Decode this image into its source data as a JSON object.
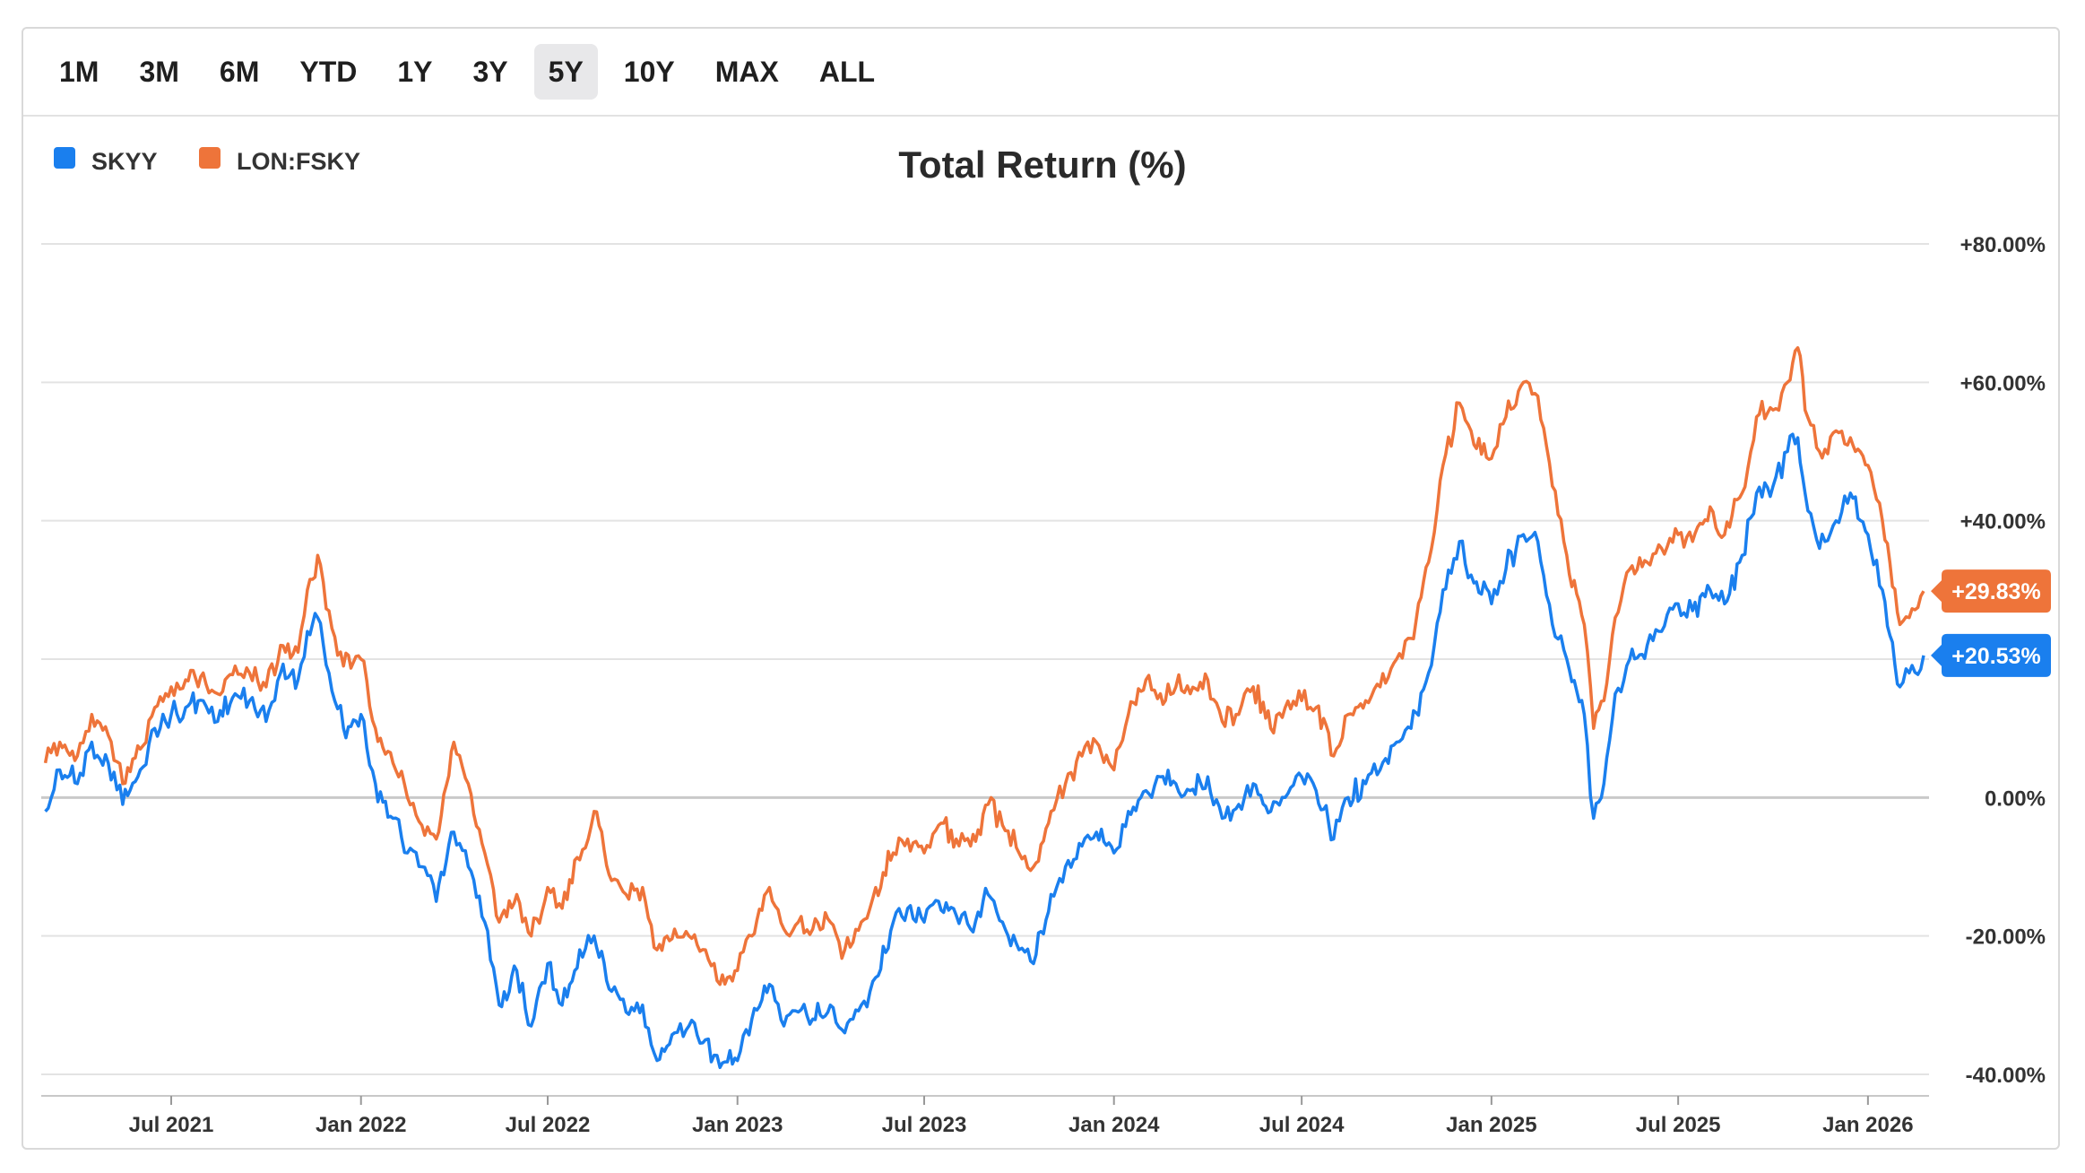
{
  "range_selector": {
    "options": [
      "1M",
      "3M",
      "6M",
      "YTD",
      "1Y",
      "3Y",
      "5Y",
      "10Y",
      "MAX",
      "ALL"
    ],
    "active": "5Y"
  },
  "colors": {
    "skyy": "#1a7fee",
    "fsky": "#ee743a",
    "grid": "#e3e3e3",
    "zero": "#c9c9c9"
  },
  "chart_data": {
    "type": "line",
    "title": "Total Return (%)",
    "ylabel": "",
    "xlabel": "",
    "y_tick_labels": [
      "+80.00%",
      "+60.00%",
      "+40.00%",
      "+20.00%",
      "0.00%",
      "-20.00%",
      "-40.00%"
    ],
    "y_ticks": [
      80,
      60,
      40,
      20,
      0,
      -20,
      -40
    ],
    "ylim": [
      -42,
      82
    ],
    "x_tick_labels": [
      "Jul 2021",
      "Jan 2022",
      "Jul 2022",
      "Jan 2023",
      "Jul 2023",
      "Jan 2024",
      "Jul 2024",
      "Jan 2025",
      "Jul 2025",
      "Jan 2026"
    ],
    "x_ticks": [
      "2021-07-01",
      "2022-01-01",
      "2022-07-01",
      "2023-01-01",
      "2023-07-01",
      "2024-01-01",
      "2024-07-01",
      "2025-01-01",
      "2025-07-01",
      "2026-01-01"
    ],
    "xlim": [
      "2021-02-25",
      "2026-02-24"
    ],
    "legend_position": "top-left",
    "series": [
      {
        "name": "SKYY",
        "color": "#1a7fee",
        "last_value_label": "+20.53%",
        "points": [
          [
            "2021-03-01",
            -2
          ],
          [
            "2021-03-15",
            4
          ],
          [
            "2021-04-01",
            2
          ],
          [
            "2021-04-15",
            8
          ],
          [
            "2021-05-01",
            5
          ],
          [
            "2021-05-15",
            -1
          ],
          [
            "2021-06-01",
            4
          ],
          [
            "2021-06-15",
            10
          ],
          [
            "2021-07-01",
            12
          ],
          [
            "2021-07-15",
            13
          ],
          [
            "2021-08-01",
            14
          ],
          [
            "2021-08-15",
            11
          ],
          [
            "2021-09-01",
            15
          ],
          [
            "2021-09-15",
            14
          ],
          [
            "2021-10-01",
            11
          ],
          [
            "2021-10-15",
            18
          ],
          [
            "2021-11-01",
            17
          ],
          [
            "2021-11-10",
            24
          ],
          [
            "2021-11-20",
            26
          ],
          [
            "2021-12-01",
            18
          ],
          [
            "2021-12-15",
            10
          ],
          [
            "2022-01-01",
            12
          ],
          [
            "2022-01-15",
            2
          ],
          [
            "2022-02-01",
            -3
          ],
          [
            "2022-02-15",
            -8
          ],
          [
            "2022-03-01",
            -10
          ],
          [
            "2022-03-15",
            -15
          ],
          [
            "2022-04-01",
            -5
          ],
          [
            "2022-04-15",
            -10
          ],
          [
            "2022-05-01",
            -18
          ],
          [
            "2022-05-15",
            -30
          ],
          [
            "2022-06-01",
            -25
          ],
          [
            "2022-06-15",
            -33
          ],
          [
            "2022-07-01",
            -24
          ],
          [
            "2022-07-15",
            -30
          ],
          [
            "2022-08-01",
            -22
          ],
          [
            "2022-08-15",
            -20
          ],
          [
            "2022-09-01",
            -28
          ],
          [
            "2022-09-15",
            -31
          ],
          [
            "2022-10-01",
            -30
          ],
          [
            "2022-10-15",
            -38
          ],
          [
            "2022-11-01",
            -34
          ],
          [
            "2022-11-15",
            -33
          ],
          [
            "2022-12-01",
            -35
          ],
          [
            "2022-12-15",
            -39
          ],
          [
            "2023-01-01",
            -38
          ],
          [
            "2023-01-15",
            -32
          ],
          [
            "2023-02-01",
            -27
          ],
          [
            "2023-02-15",
            -33
          ],
          [
            "2023-03-01",
            -31
          ],
          [
            "2023-03-15",
            -32
          ],
          [
            "2023-04-01",
            -30
          ],
          [
            "2023-04-15",
            -34
          ],
          [
            "2023-05-01",
            -30
          ],
          [
            "2023-05-15",
            -26
          ],
          [
            "2023-06-01",
            -18
          ],
          [
            "2023-06-15",
            -16
          ],
          [
            "2023-07-01",
            -18
          ],
          [
            "2023-07-15",
            -15
          ],
          [
            "2023-08-01",
            -17
          ],
          [
            "2023-08-15",
            -19
          ],
          [
            "2023-09-01",
            -14
          ],
          [
            "2023-09-15",
            -18
          ],
          [
            "2023-10-01",
            -22
          ],
          [
            "2023-10-15",
            -24
          ],
          [
            "2023-11-01",
            -14
          ],
          [
            "2023-11-15",
            -10
          ],
          [
            "2023-12-01",
            -7
          ],
          [
            "2023-12-15",
            -5
          ],
          [
            "2024-01-01",
            -8
          ],
          [
            "2024-01-15",
            -2
          ],
          [
            "2024-02-01",
            1
          ],
          [
            "2024-02-15",
            3
          ],
          [
            "2024-03-01",
            2
          ],
          [
            "2024-03-15",
            1
          ],
          [
            "2024-04-01",
            3
          ],
          [
            "2024-04-15",
            -3
          ],
          [
            "2024-05-01",
            -1
          ],
          [
            "2024-05-15",
            2
          ],
          [
            "2024-06-01",
            -2
          ],
          [
            "2024-06-15",
            0
          ],
          [
            "2024-07-01",
            3
          ],
          [
            "2024-07-15",
            1
          ],
          [
            "2024-08-01",
            -6
          ],
          [
            "2024-08-15",
            0
          ],
          [
            "2024-09-01",
            2
          ],
          [
            "2024-09-15",
            4
          ],
          [
            "2024-10-01",
            8
          ],
          [
            "2024-10-15",
            10
          ],
          [
            "2024-11-01",
            18
          ],
          [
            "2024-11-15",
            30
          ],
          [
            "2024-12-01",
            37
          ],
          [
            "2024-12-15",
            31
          ],
          [
            "2025-01-01",
            28
          ],
          [
            "2025-01-15",
            33
          ],
          [
            "2025-02-01",
            38
          ],
          [
            "2025-02-15",
            37
          ],
          [
            "2025-03-01",
            25
          ],
          [
            "2025-03-15",
            20
          ],
          [
            "2025-04-01",
            12
          ],
          [
            "2025-04-10",
            -3
          ],
          [
            "2025-04-20",
            2
          ],
          [
            "2025-05-01",
            15
          ],
          [
            "2025-05-15",
            20
          ],
          [
            "2025-06-01",
            22
          ],
          [
            "2025-06-15",
            24
          ],
          [
            "2025-07-01",
            28
          ],
          [
            "2025-07-15",
            27
          ],
          [
            "2025-08-01",
            30
          ],
          [
            "2025-08-15",
            28
          ],
          [
            "2025-09-01",
            35
          ],
          [
            "2025-09-15",
            44
          ],
          [
            "2025-10-01",
            45
          ],
          [
            "2025-10-15",
            50
          ],
          [
            "2025-10-25",
            52
          ],
          [
            "2025-11-01",
            44
          ],
          [
            "2025-11-15",
            36
          ],
          [
            "2025-12-01",
            40
          ],
          [
            "2025-12-15",
            44
          ],
          [
            "2026-01-01",
            38
          ],
          [
            "2026-01-15",
            30
          ],
          [
            "2026-02-01",
            16
          ],
          [
            "2026-02-10",
            18
          ],
          [
            "2026-02-24",
            20.53
          ]
        ]
      },
      {
        "name": "LON:FSKY",
        "color": "#ee743a",
        "last_value_label": "+29.83%",
        "points": [
          [
            "2021-03-01",
            5
          ],
          [
            "2021-03-15",
            8
          ],
          [
            "2021-04-01",
            6
          ],
          [
            "2021-04-15",
            12
          ],
          [
            "2021-05-01",
            9
          ],
          [
            "2021-05-15",
            2
          ],
          [
            "2021-06-01",
            7
          ],
          [
            "2021-06-15",
            13
          ],
          [
            "2021-07-01",
            16
          ],
          [
            "2021-07-15",
            17
          ],
          [
            "2021-08-01",
            18
          ],
          [
            "2021-08-15",
            15
          ],
          [
            "2021-09-01",
            19
          ],
          [
            "2021-09-15",
            18
          ],
          [
            "2021-10-01",
            16
          ],
          [
            "2021-10-15",
            22
          ],
          [
            "2021-11-01",
            21
          ],
          [
            "2021-11-10",
            30
          ],
          [
            "2021-11-20",
            35
          ],
          [
            "2021-12-01",
            27
          ],
          [
            "2021-12-15",
            19
          ],
          [
            "2022-01-01",
            20
          ],
          [
            "2022-01-15",
            10
          ],
          [
            "2022-02-01",
            5
          ],
          [
            "2022-02-15",
            0
          ],
          [
            "2022-03-01",
            -4
          ],
          [
            "2022-03-15",
            -6
          ],
          [
            "2022-04-01",
            8
          ],
          [
            "2022-04-15",
            2
          ],
          [
            "2022-05-01",
            -8
          ],
          [
            "2022-05-15",
            -18
          ],
          [
            "2022-06-01",
            -14
          ],
          [
            "2022-06-15",
            -20
          ],
          [
            "2022-07-01",
            -13
          ],
          [
            "2022-07-15",
            -16
          ],
          [
            "2022-08-01",
            -9
          ],
          [
            "2022-08-15",
            -2
          ],
          [
            "2022-09-01",
            -12
          ],
          [
            "2022-09-15",
            -14
          ],
          [
            "2022-10-01",
            -13
          ],
          [
            "2022-10-15",
            -22
          ],
          [
            "2022-11-01",
            -19
          ],
          [
            "2022-11-15",
            -20
          ],
          [
            "2022-12-01",
            -22
          ],
          [
            "2022-12-15",
            -27
          ],
          [
            "2023-01-01",
            -25
          ],
          [
            "2023-01-15",
            -20
          ],
          [
            "2023-02-01",
            -13
          ],
          [
            "2023-02-15",
            -19
          ],
          [
            "2023-03-01",
            -18
          ],
          [
            "2023-03-15",
            -19
          ],
          [
            "2023-04-01",
            -18
          ],
          [
            "2023-04-15",
            -22
          ],
          [
            "2023-05-01",
            -18
          ],
          [
            "2023-05-15",
            -13
          ],
          [
            "2023-06-01",
            -8
          ],
          [
            "2023-06-15",
            -6
          ],
          [
            "2023-07-01",
            -8
          ],
          [
            "2023-07-15",
            -4
          ],
          [
            "2023-08-01",
            -6
          ],
          [
            "2023-08-15",
            -7
          ],
          [
            "2023-09-01",
            -1
          ],
          [
            "2023-09-15",
            -4
          ],
          [
            "2023-10-01",
            -8
          ],
          [
            "2023-10-15",
            -10
          ],
          [
            "2023-11-01",
            -2
          ],
          [
            "2023-11-15",
            2
          ],
          [
            "2023-12-01",
            6
          ],
          [
            "2023-12-15",
            8
          ],
          [
            "2024-01-01",
            4
          ],
          [
            "2024-01-15",
            12
          ],
          [
            "2024-02-01",
            17
          ],
          [
            "2024-02-15",
            15
          ],
          [
            "2024-03-01",
            16
          ],
          [
            "2024-03-15",
            15
          ],
          [
            "2024-04-01",
            17
          ],
          [
            "2024-04-15",
            11
          ],
          [
            "2024-05-01",
            12
          ],
          [
            "2024-05-15",
            16
          ],
          [
            "2024-06-01",
            10
          ],
          [
            "2024-06-15",
            13
          ],
          [
            "2024-07-01",
            14
          ],
          [
            "2024-07-15",
            13
          ],
          [
            "2024-08-01",
            6
          ],
          [
            "2024-08-15",
            12
          ],
          [
            "2024-09-01",
            14
          ],
          [
            "2024-09-15",
            16
          ],
          [
            "2024-10-01",
            20
          ],
          [
            "2024-10-15",
            23
          ],
          [
            "2024-11-01",
            34
          ],
          [
            "2024-11-15",
            48
          ],
          [
            "2024-12-01",
            57
          ],
          [
            "2024-12-15",
            51
          ],
          [
            "2025-01-01",
            49
          ],
          [
            "2025-01-15",
            55
          ],
          [
            "2025-02-01",
            60
          ],
          [
            "2025-02-15",
            58
          ],
          [
            "2025-03-01",
            45
          ],
          [
            "2025-03-15",
            35
          ],
          [
            "2025-04-01",
            25
          ],
          [
            "2025-04-10",
            10
          ],
          [
            "2025-04-20",
            14
          ],
          [
            "2025-05-01",
            26
          ],
          [
            "2025-05-15",
            33
          ],
          [
            "2025-06-01",
            34
          ],
          [
            "2025-06-15",
            36
          ],
          [
            "2025-07-01",
            38
          ],
          [
            "2025-07-15",
            37
          ],
          [
            "2025-08-01",
            42
          ],
          [
            "2025-08-15",
            38
          ],
          [
            "2025-09-01",
            44
          ],
          [
            "2025-09-15",
            55
          ],
          [
            "2025-10-01",
            56
          ],
          [
            "2025-10-15",
            60
          ],
          [
            "2025-10-25",
            65
          ],
          [
            "2025-11-01",
            56
          ],
          [
            "2025-11-15",
            50
          ],
          [
            "2025-12-01",
            53
          ],
          [
            "2025-12-15",
            52
          ],
          [
            "2026-01-01",
            48
          ],
          [
            "2026-01-15",
            40
          ],
          [
            "2026-02-01",
            25
          ],
          [
            "2026-02-10",
            26
          ],
          [
            "2026-02-24",
            29.83
          ]
        ]
      }
    ]
  }
}
